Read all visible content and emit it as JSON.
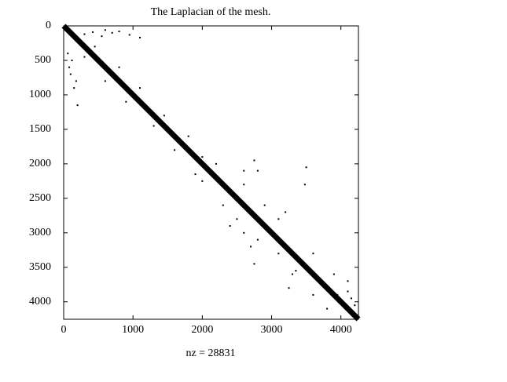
{
  "chart_data": {
    "type": "spy",
    "title": "The Laplacian of the mesh.",
    "xlabel": "nz = 28831",
    "xlim": [
      0,
      4253
    ],
    "ylim": [
      0,
      4253
    ],
    "xticks": [
      0,
      1000,
      2000,
      3000,
      4000
    ],
    "yticks": [
      0,
      500,
      1000,
      1500,
      2000,
      2500,
      3000,
      3500,
      4000
    ],
    "color": "#000000",
    "diagonal": {
      "x": [
        0,
        4253
      ],
      "y": [
        0,
        4253
      ]
    },
    "points": {
      "x": [
        300,
        420,
        550,
        700,
        800,
        1100,
        950,
        600,
        80,
        100,
        150,
        200,
        60,
        120,
        180,
        300,
        450,
        600,
        800,
        900,
        1100,
        1300,
        1450,
        1600,
        1800,
        2000,
        2200,
        2300,
        2600,
        2800,
        3100,
        3300,
        3600,
        3800,
        4100,
        2750,
        2800,
        2500,
        2600,
        2700,
        2750,
        2900,
        2400,
        3480,
        3500,
        3200,
        3100,
        3900,
        4100,
        4200,
        3950,
        4150,
        1900,
        2000,
        3350,
        3250,
        3600,
        2600
      ],
      "y": [
        120,
        90,
        150,
        100,
        80,
        170,
        130,
        60,
        600,
        700,
        900,
        1150,
        400,
        500,
        800,
        450,
        300,
        800,
        600,
        1100,
        900,
        1450,
        1300,
        1800,
        1600,
        2250,
        2000,
        2600,
        2300,
        3100,
        2800,
        3600,
        3300,
        4100,
        3850,
        1950,
        2100,
        2800,
        3000,
        3200,
        3450,
        2600,
        2900,
        2300,
        2050,
        2700,
        3300,
        3600,
        3700,
        4050,
        3900,
        3950,
        2150,
        1900,
        3550,
        3800,
        3900,
        2100
      ]
    }
  }
}
